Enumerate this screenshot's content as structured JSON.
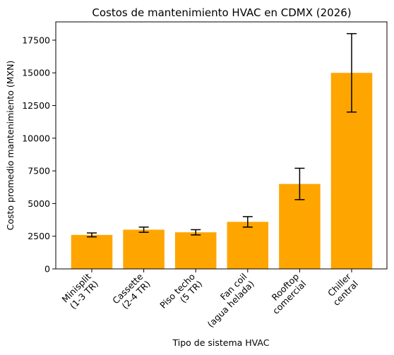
{
  "chart_data": {
    "type": "bar",
    "title": "Costos de mantenimiento HVAC en CDMX (2026)",
    "xlabel": "Tipo de sistema HVAC",
    "ylabel": "Costo promedio mantenimiento (MXN)",
    "categories": [
      [
        "Minisplit",
        "(1-3 TR)"
      ],
      [
        "Cassette",
        "(2-4 TR)"
      ],
      [
        "Piso techo",
        "(5 TR)"
      ],
      [
        "Fan coil",
        "(agua helada)"
      ],
      [
        "Rooftop",
        "comercial"
      ],
      [
        "Chiller",
        "central"
      ]
    ],
    "values": [
      2600,
      3000,
      2800,
      3600,
      6500,
      15000
    ],
    "error_low": [
      2450,
      2800,
      2600,
      3200,
      5300,
      12000
    ],
    "error_high": [
      2750,
      3200,
      3000,
      4000,
      7700,
      18000
    ],
    "ylim": [
      0,
      18900
    ],
    "yticks": [
      0,
      2500,
      5000,
      7500,
      10000,
      12500,
      15000,
      17500
    ],
    "ytick_labels": [
      "0",
      "2500",
      "5000",
      "7500",
      "10000",
      "12500",
      "15000",
      "17500"
    ],
    "bar_color": "#ffa500",
    "error_color": "#000000",
    "grid": false,
    "legend": "none"
  }
}
